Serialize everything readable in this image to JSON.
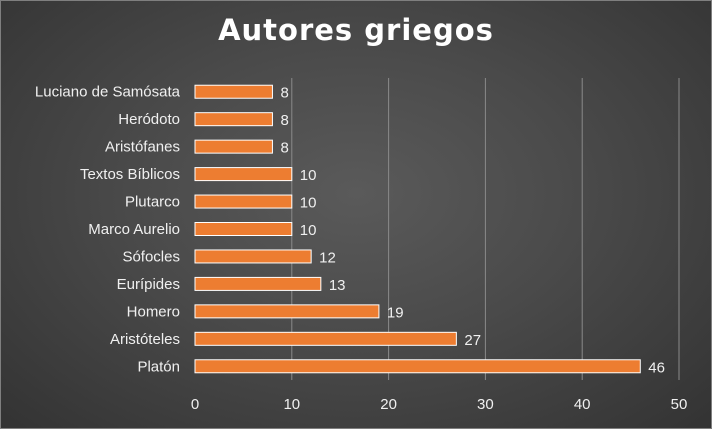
{
  "chart_data": {
    "type": "bar",
    "orientation": "horizontal",
    "title": "Autores griegos",
    "categories": [
      "Platón",
      "Aristóteles",
      "Homero",
      "Eurípides",
      "Sófocles",
      "Marco Aurelio",
      "Plutarco",
      "Textos Bíblicos",
      "Aristófanes",
      "Heródoto",
      "Luciano de Samósata"
    ],
    "values": [
      46,
      27,
      19,
      13,
      12,
      10,
      10,
      10,
      8,
      8,
      8
    ],
    "xlim": [
      0,
      50
    ],
    "xticks": [
      0,
      10,
      20,
      30,
      40,
      50
    ],
    "xlabel": "",
    "ylabel": "",
    "grid": "vertical",
    "data_labels": true,
    "legend": "none",
    "colors": {
      "bar": "#ed7d31",
      "bar_edge": "#ffffff",
      "grid": "#8a8a8a",
      "text": "#f0f0f0",
      "background": "#474747"
    }
  }
}
